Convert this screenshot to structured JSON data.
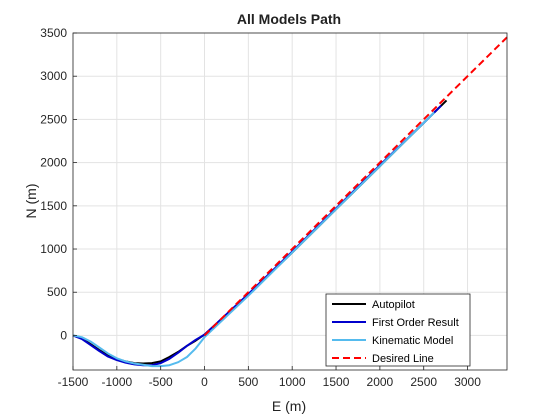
{
  "chart_data": {
    "type": "line",
    "title": "All Models Path",
    "xlabel": "E (m)",
    "ylabel": "N (m)",
    "xlim": [
      -1500,
      3450
    ],
    "ylim": [
      -400,
      3500
    ],
    "xticks": [
      -1500,
      -1000,
      -500,
      0,
      500,
      1000,
      1500,
      2000,
      2500,
      3000
    ],
    "yticks": [
      0,
      500,
      1000,
      1500,
      2000,
      2500,
      3000,
      3500
    ],
    "grid": true,
    "legend_position": "bottom-right",
    "series": [
      {
        "name": "Autopilot",
        "color": "#000000",
        "style": "solid",
        "points": [
          [
            -1500,
            0
          ],
          [
            -1400,
            -35
          ],
          [
            -1300,
            -100
          ],
          [
            -1200,
            -170
          ],
          [
            -1100,
            -230
          ],
          [
            -1000,
            -270
          ],
          [
            -900,
            -300
          ],
          [
            -800,
            -320
          ],
          [
            -700,
            -325
          ],
          [
            -600,
            -320
          ],
          [
            -500,
            -300
          ],
          [
            -400,
            -250
          ],
          [
            -300,
            -190
          ],
          [
            -200,
            -120
          ],
          [
            -100,
            -60
          ],
          [
            0,
            10
          ],
          [
            500,
            470
          ],
          [
            1000,
            960
          ],
          [
            1500,
            1460
          ],
          [
            2000,
            1960
          ],
          [
            2500,
            2460
          ],
          [
            2760,
            2720
          ]
        ]
      },
      {
        "name": "First Order Result",
        "color": "#0000cc",
        "style": "solid",
        "points": [
          [
            -1500,
            0
          ],
          [
            -1400,
            -40
          ],
          [
            -1300,
            -110
          ],
          [
            -1200,
            -180
          ],
          [
            -1100,
            -245
          ],
          [
            -1000,
            -285
          ],
          [
            -900,
            -315
          ],
          [
            -800,
            -335
          ],
          [
            -700,
            -345
          ],
          [
            -600,
            -345
          ],
          [
            -500,
            -320
          ],
          [
            -400,
            -270
          ],
          [
            -300,
            -200
          ],
          [
            -200,
            -120
          ],
          [
            -100,
            -50
          ],
          [
            0,
            10
          ],
          [
            500,
            480
          ],
          [
            1000,
            970
          ],
          [
            1500,
            1470
          ],
          [
            2000,
            1970
          ],
          [
            2500,
            2460
          ],
          [
            2700,
            2660
          ]
        ]
      },
      {
        "name": "Kinematic Model",
        "color": "#55bbee",
        "style": "solid",
        "points": [
          [
            -1500,
            0
          ],
          [
            -1400,
            -20
          ],
          [
            -1300,
            -70
          ],
          [
            -1200,
            -140
          ],
          [
            -1100,
            -210
          ],
          [
            -1000,
            -265
          ],
          [
            -900,
            -300
          ],
          [
            -800,
            -325
          ],
          [
            -700,
            -340
          ],
          [
            -600,
            -355
          ],
          [
            -500,
            -355
          ],
          [
            -400,
            -345
          ],
          [
            -300,
            -310
          ],
          [
            -200,
            -250
          ],
          [
            -100,
            -150
          ],
          [
            0,
            -20
          ],
          [
            500,
            460
          ],
          [
            1000,
            960
          ],
          [
            1500,
            1460
          ],
          [
            2000,
            1960
          ],
          [
            2500,
            2460
          ],
          [
            2620,
            2580
          ]
        ]
      },
      {
        "name": "Desired Line",
        "color": "#ff0000",
        "style": "dashed",
        "points": [
          [
            0,
            0
          ],
          [
            3450,
            3450
          ]
        ]
      }
    ]
  }
}
